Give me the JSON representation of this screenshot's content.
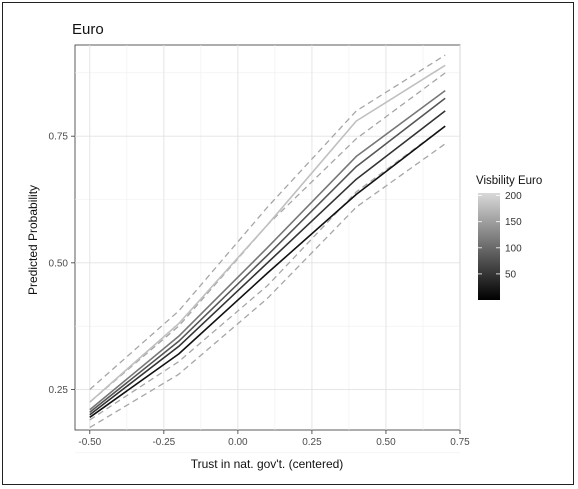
{
  "chart_data": {
    "type": "line",
    "title": "Euro",
    "xlabel": "Trust in nat. gov't. (centered)",
    "ylabel": "Predicted Probability",
    "xlim": [
      -0.55,
      0.75
    ],
    "ylim": [
      0.17,
      0.93
    ],
    "xticks": [
      -0.5,
      -0.25,
      0.0,
      0.25,
      0.5,
      0.75
    ],
    "xtick_labels": [
      "-0.50",
      "-0.25",
      "0.00",
      "0.25",
      "0.50",
      "0.75"
    ],
    "yticks": [
      0.25,
      0.5,
      0.75
    ],
    "ytick_labels": [
      "0.25",
      "0.50",
      "0.75"
    ],
    "grid": true,
    "legend": {
      "title": "Visbility Euro",
      "type": "colorbar",
      "position": "right",
      "range": [
        0,
        205
      ],
      "ticks": [
        50,
        100,
        150,
        200
      ],
      "tick_labels": [
        "50",
        "100",
        "150",
        "200"
      ],
      "color_low": "#000000",
      "color_high": "#d9d9d9"
    },
    "x": [
      -0.5,
      -0.2,
      0.1,
      0.4,
      0.7
    ],
    "series": [
      {
        "visibility": 10,
        "color": "#111111",
        "style": "solid",
        "values": [
          0.195,
          0.32,
          0.48,
          0.635,
          0.77
        ]
      },
      {
        "visibility": 60,
        "color": "#333333",
        "style": "solid",
        "values": [
          0.2,
          0.335,
          0.5,
          0.665,
          0.8
        ]
      },
      {
        "visibility": 100,
        "color": "#555555",
        "style": "solid",
        "values": [
          0.205,
          0.345,
          0.515,
          0.69,
          0.825
        ]
      },
      {
        "visibility": 130,
        "color": "#777777",
        "style": "solid",
        "values": [
          0.21,
          0.355,
          0.53,
          0.71,
          0.84
        ]
      },
      {
        "visibility": 190,
        "color": "#c0c0c0",
        "style": "solid",
        "values": [
          0.225,
          0.38,
          0.575,
          0.78,
          0.89
        ]
      },
      {
        "visibility": null,
        "color": "#a6a6a6",
        "style": "dashed",
        "values": [
          0.175,
          0.28,
          0.43,
          0.61,
          0.735
        ]
      },
      {
        "visibility": null,
        "color": "#a6a6a6",
        "style": "dashed",
        "values": [
          0.19,
          0.305,
          0.455,
          0.64,
          0.77
        ]
      },
      {
        "visibility": null,
        "color": "#a6a6a6",
        "style": "dashed",
        "values": [
          0.225,
          0.375,
          0.575,
          0.745,
          0.875
        ]
      },
      {
        "visibility": null,
        "color": "#a6a6a6",
        "style": "dashed",
        "values": [
          0.25,
          0.405,
          0.61,
          0.8,
          0.91
        ]
      }
    ]
  }
}
